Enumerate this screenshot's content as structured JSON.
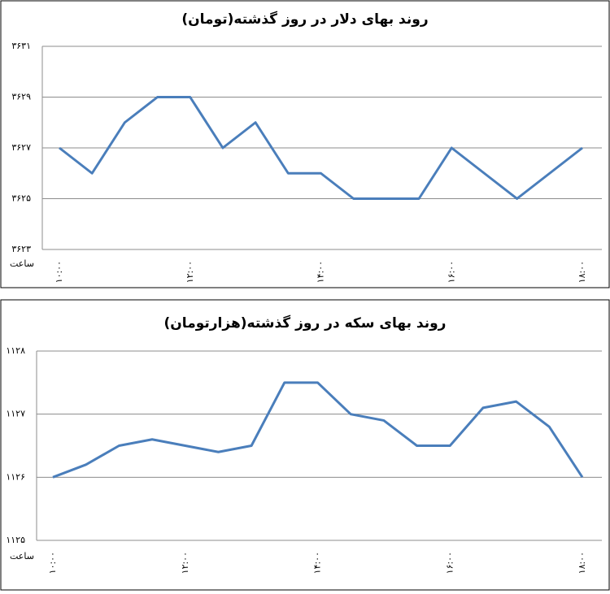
{
  "chart_data": [
    {
      "type": "line",
      "title": "روند بهای دلار در روز گذشته(تومان)",
      "x_label": "ساعت",
      "categories": [
        "۱۰:۰۰",
        null,
        null,
        null,
        "۱۲:۰۰",
        null,
        null,
        null,
        "۱۴:۰۰",
        null,
        null,
        null,
        "۱۶:۰۰",
        null,
        null,
        null,
        "۱۸:۰۰"
      ],
      "series": [
        {
          "name": "دلار",
          "color": "#4a7ebb",
          "values": [
            3627,
            3626,
            3628,
            3629,
            3629,
            3627,
            3628,
            3626,
            3626,
            3625,
            3625,
            3625,
            3627,
            3626,
            3625,
            3626,
            3627
          ]
        }
      ],
      "ylim": [
        3623,
        3631
      ],
      "yticks": [
        {
          "value": 3623,
          "label": "۳۶۲۳"
        },
        {
          "value": 3625,
          "label": "۳۶۲۵"
        },
        {
          "value": 3627,
          "label": "۳۶۲۷"
        },
        {
          "value": 3629,
          "label": "۳۶۲۹"
        },
        {
          "value": 3631,
          "label": "۳۶۳۱"
        }
      ],
      "grid": true
    },
    {
      "type": "line",
      "title": "روند بهای سکه در روز گذشته(هزارتومان)",
      "x_label": "ساعت",
      "categories": [
        "۱۰:۰۰",
        null,
        null,
        null,
        "۱۲:۰۰",
        null,
        null,
        null,
        "۱۴:۰۰",
        null,
        null,
        null,
        "۱۶:۰۰",
        null,
        null,
        null,
        "۱۸:۰۰"
      ],
      "series": [
        {
          "name": "سکه",
          "color": "#4a7ebb",
          "values": [
            1126.0,
            1126.2,
            1126.5,
            1126.6,
            1126.5,
            1126.4,
            1126.5,
            1127.5,
            1127.5,
            1127.0,
            1126.9,
            1126.5,
            1126.5,
            1127.1,
            1127.2,
            1126.8,
            1126.0
          ]
        }
      ],
      "ylim": [
        1125,
        1128
      ],
      "yticks": [
        {
          "value": 1125,
          "label": "۱۱۲۵"
        },
        {
          "value": 1126,
          "label": "۱۱۲۶"
        },
        {
          "value": 1127,
          "label": "۱۱۲۷"
        },
        {
          "value": 1128,
          "label": "۱۱۲۸"
        }
      ],
      "grid": true
    }
  ]
}
